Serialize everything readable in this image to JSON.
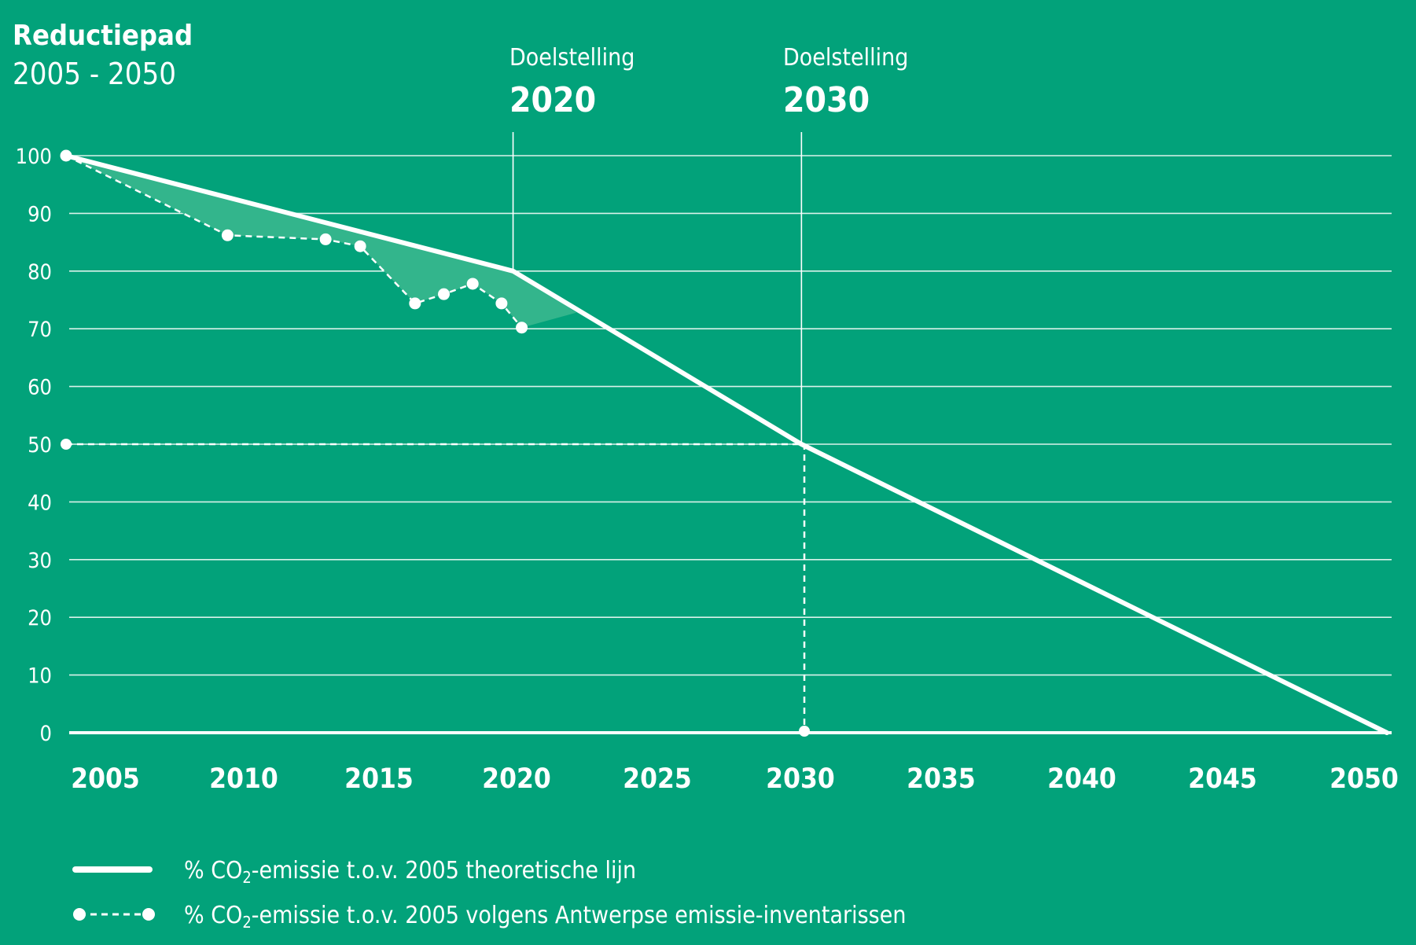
{
  "chart_data": {
    "type": "line",
    "title": "Reductiepad",
    "subtitle": "2005 - 2050",
    "xlabel": "",
    "ylabel": "",
    "xlim": [
      2004.5,
      2050.3
    ],
    "ylim": [
      0,
      100
    ],
    "x_ticks": [
      "2005",
      "2010",
      "2015",
      "2020",
      "2025",
      "2030",
      "2035",
      "2040",
      "2045",
      "2050"
    ],
    "y_ticks": [
      "0",
      "10",
      "20",
      "30",
      "40",
      "50",
      "60",
      "70",
      "80",
      "90",
      "100"
    ],
    "grid": true,
    "colors": {
      "background": "#02a27a",
      "foreground": "#ffffff",
      "gap_fill": "#33b58c",
      "gridline": "#d9f2ea"
    },
    "series": [
      {
        "name": "% CO₂-emissie t.o.v. 2005 theoretische lijn",
        "style": "solid",
        "points": [
          {
            "x": 2004.5,
            "y": 100
          },
          {
            "x": 2020,
            "y": 80
          },
          {
            "x": 2030,
            "y": 50
          },
          {
            "x": 2050.3,
            "y": 0
          }
        ]
      },
      {
        "name": "% CO₂-emissie t.o.v. 2005 volgens Antwerpse emissie-inventarissen",
        "style": "dashed-with-dots",
        "points": [
          {
            "x": 2004.5,
            "y": 100
          },
          {
            "x": 2010.1,
            "y": 86.2
          },
          {
            "x": 2013.5,
            "y": 85.5
          },
          {
            "x": 2014.7,
            "y": 84.3
          },
          {
            "x": 2016.6,
            "y": 74.4
          },
          {
            "x": 2017.6,
            "y": 76.0
          },
          {
            "x": 2018.6,
            "y": 77.8
          },
          {
            "x": 2019.6,
            "y": 74.4
          },
          {
            "x": 2020.3,
            "y": 70.2
          }
        ]
      }
    ],
    "gap_area": {
      "upper_series": 0,
      "lower_series": 1,
      "extends_to": {
        "x": 2022.2,
        "y": 72.8
      }
    },
    "targets": [
      {
        "label": "Doelstelling",
        "year": "2020",
        "x": 2020,
        "y": 80
      },
      {
        "label": "Doelstelling",
        "year": "2030",
        "x": 2030,
        "y": 50
      }
    ],
    "guide_50": {
      "from": {
        "x": 2004.5,
        "y": 50
      },
      "corner": {
        "x": 2030.1,
        "y": 50
      },
      "to": {
        "x": 2030.1,
        "y": 0
      }
    },
    "legend": {
      "placement": "bottom-left",
      "entries": [
        {
          "prefix": "% CO",
          "sub": "2",
          "suffix": "-emissie t.o.v. 2005 theoretische lijn",
          "style": "solid"
        },
        {
          "prefix": "% CO",
          "sub": "2",
          "suffix": "-emissie t.o.v. 2005 volgens Antwerpse emissie-inventarissen",
          "style": "dashed-with-dots"
        }
      ]
    }
  }
}
